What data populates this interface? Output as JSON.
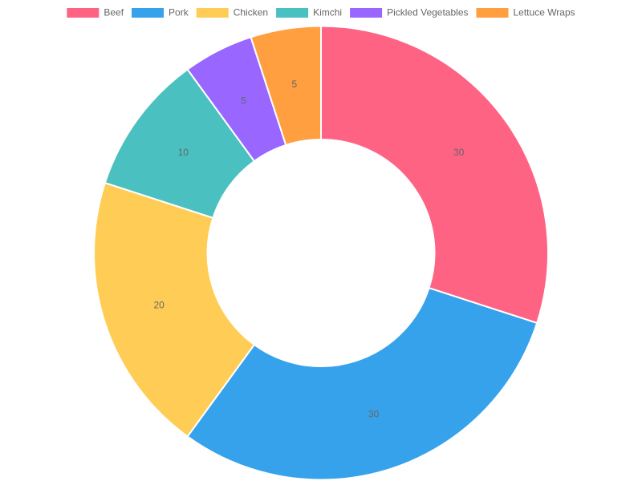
{
  "chart_data": {
    "type": "doughnut",
    "categories": [
      "Beef",
      "Pork",
      "Chicken",
      "Kimchi",
      "Pickled Vegetables",
      "Lettuce Wraps"
    ],
    "values": [
      30,
      30,
      20,
      10,
      5,
      5
    ],
    "colors": [
      "#ff6384",
      "#36a2eb",
      "#ffcd56",
      "#4bc0c0",
      "#9966ff",
      "#ff9f40"
    ],
    "legend": "top"
  }
}
